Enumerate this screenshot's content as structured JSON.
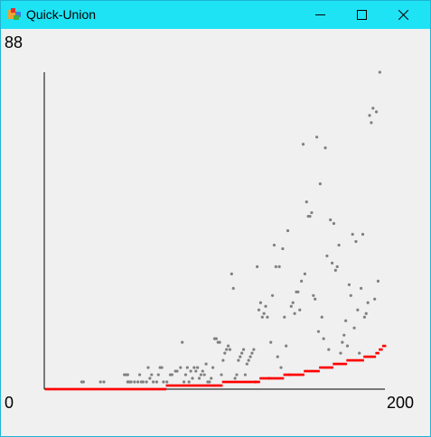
{
  "window": {
    "title": "Quick-Union",
    "controls": [
      "minimize",
      "maximize",
      "close"
    ]
  },
  "colors": {
    "titlebar": "#1ee3f5",
    "background": "#f0f0f0",
    "cost_points": "#808080",
    "running_average": "#ff0000",
    "axis": "#000000"
  },
  "axis_labels": {
    "y_max": "88",
    "y_min": "0",
    "x_max": "200"
  },
  "chart_data": {
    "type": "scatter",
    "xlim": [
      0,
      200
    ],
    "ylim": [
      0,
      88
    ],
    "series": [
      {
        "color": "gray",
        "points": [
          [
            22,
            2
          ],
          [
            23,
            2
          ],
          [
            33,
            2
          ],
          [
            35,
            2
          ],
          [
            47,
            4
          ],
          [
            48,
            4
          ],
          [
            49,
            4
          ],
          [
            49,
            2
          ],
          [
            50,
            2
          ],
          [
            51,
            2
          ],
          [
            53,
            2
          ],
          [
            55,
            2
          ],
          [
            56,
            4
          ],
          [
            57,
            2
          ],
          [
            58,
            2
          ],
          [
            60,
            2
          ],
          [
            61,
            6
          ],
          [
            62,
            3
          ],
          [
            63,
            4
          ],
          [
            64,
            2
          ],
          [
            66,
            2
          ],
          [
            67,
            4
          ],
          [
            68,
            6
          ],
          [
            69,
            6
          ],
          [
            70,
            2
          ],
          [
            72,
            2
          ],
          [
            74,
            4
          ],
          [
            75,
            4
          ],
          [
            77,
            5
          ],
          [
            78,
            5
          ],
          [
            80,
            6
          ],
          [
            81,
            13
          ],
          [
            82,
            2
          ],
          [
            83,
            4
          ],
          [
            84,
            6
          ],
          [
            85,
            2
          ],
          [
            86,
            5
          ],
          [
            87,
            3
          ],
          [
            88,
            6
          ],
          [
            89,
            5
          ],
          [
            90,
            6
          ],
          [
            91,
            3
          ],
          [
            92,
            4
          ],
          [
            93,
            5
          ],
          [
            94,
            4
          ],
          [
            95,
            7
          ],
          [
            96,
            2
          ],
          [
            97,
            2
          ],
          [
            98,
            3
          ],
          [
            99,
            6
          ],
          [
            100,
            14
          ],
          [
            101,
            14
          ],
          [
            102,
            13
          ],
          [
            103,
            13
          ],
          [
            104,
            4
          ],
          [
            105,
            8
          ],
          [
            106,
            10
          ],
          [
            107,
            11
          ],
          [
            108,
            12
          ],
          [
            109,
            11
          ],
          [
            110,
            32
          ],
          [
            111,
            28
          ],
          [
            112,
            3
          ],
          [
            113,
            4
          ],
          [
            114,
            8
          ],
          [
            115,
            9
          ],
          [
            116,
            10
          ],
          [
            117,
            11
          ],
          [
            118,
            4
          ],
          [
            119,
            7
          ],
          [
            120,
            8
          ],
          [
            121,
            9
          ],
          [
            122,
            10
          ],
          [
            123,
            11
          ],
          [
            124,
            2
          ],
          [
            125,
            34
          ],
          [
            126,
            22
          ],
          [
            127,
            24
          ],
          [
            128,
            20
          ],
          [
            129,
            21
          ],
          [
            130,
            23
          ],
          [
            131,
            20
          ],
          [
            132,
            3
          ],
          [
            133,
            13
          ],
          [
            134,
            26
          ],
          [
            135,
            40
          ],
          [
            136,
            34
          ],
          [
            137,
            9
          ],
          [
            138,
            34
          ],
          [
            139,
            6
          ],
          [
            140,
            39
          ],
          [
            141,
            20
          ],
          [
            142,
            12
          ],
          [
            143,
            44
          ],
          [
            144,
            4
          ],
          [
            145,
            23
          ],
          [
            146,
            24
          ],
          [
            147,
            21
          ],
          [
            148,
            27
          ],
          [
            149,
            27
          ],
          [
            150,
            22
          ],
          [
            151,
            30
          ],
          [
            152,
            68
          ],
          [
            153,
            32
          ],
          [
            154,
            52
          ],
          [
            155,
            48
          ],
          [
            156,
            48
          ],
          [
            157,
            49
          ],
          [
            158,
            26
          ],
          [
            159,
            25
          ],
          [
            160,
            70
          ],
          [
            161,
            16
          ],
          [
            162,
            57
          ],
          [
            163,
            20
          ],
          [
            164,
            14
          ],
          [
            165,
            67
          ],
          [
            166,
            37
          ],
          [
            167,
            11
          ],
          [
            168,
            47
          ],
          [
            169,
            35
          ],
          [
            170,
            46
          ],
          [
            171,
            33
          ],
          [
            172,
            34
          ],
          [
            173,
            40
          ],
          [
            174,
            10
          ],
          [
            175,
            13
          ],
          [
            176,
            15
          ],
          [
            177,
            19
          ],
          [
            178,
            12
          ],
          [
            179,
            29
          ],
          [
            180,
            26
          ],
          [
            181,
            43
          ],
          [
            182,
            17
          ],
          [
            183,
            41
          ],
          [
            184,
            22
          ],
          [
            185,
            10
          ],
          [
            186,
            28
          ],
          [
            187,
            43
          ],
          [
            188,
            20
          ],
          [
            189,
            21
          ],
          [
            190,
            24
          ],
          [
            191,
            76
          ],
          [
            192,
            74
          ],
          [
            193,
            78
          ],
          [
            194,
            25
          ],
          [
            195,
            77
          ],
          [
            196,
            30
          ],
          [
            197,
            88
          ]
        ]
      },
      {
        "color": "red",
        "points": [
          [
            1,
            0
          ],
          [
            10,
            0
          ],
          [
            20,
            0
          ],
          [
            30,
            0
          ],
          [
            40,
            0
          ],
          [
            50,
            0
          ],
          [
            60,
            0
          ],
          [
            70,
            0
          ],
          [
            72,
            1
          ],
          [
            80,
            1
          ],
          [
            90,
            1
          ],
          [
            100,
            1
          ],
          [
            105,
            2
          ],
          [
            115,
            2
          ],
          [
            125,
            2
          ],
          [
            127,
            3
          ],
          [
            135,
            3
          ],
          [
            140,
            3
          ],
          [
            141,
            4
          ],
          [
            150,
            4
          ],
          [
            153,
            5
          ],
          [
            160,
            5
          ],
          [
            162,
            6
          ],
          [
            168,
            6
          ],
          [
            170,
            7
          ],
          [
            175,
            7
          ],
          [
            178,
            8
          ],
          [
            185,
            8
          ],
          [
            188,
            9
          ],
          [
            195,
            10
          ],
          [
            197,
            11
          ],
          [
            199,
            12
          ]
        ]
      }
    ]
  }
}
